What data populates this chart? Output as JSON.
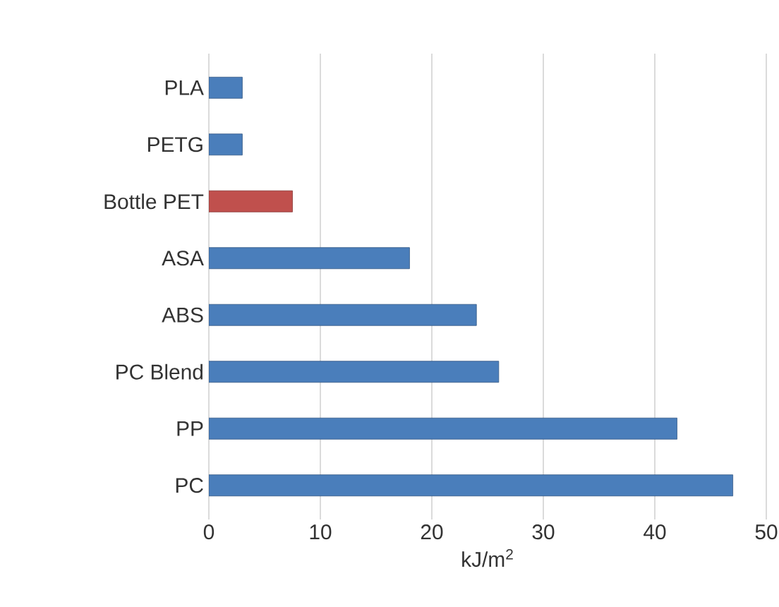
{
  "chart_data": {
    "type": "bar",
    "orientation": "horizontal",
    "categories": [
      "PLA",
      "PETG",
      "Bottle PET",
      "ASA",
      "ABS",
      "PC Blend",
      "PP",
      "PC"
    ],
    "values": [
      3,
      3,
      7.5,
      18,
      24,
      26,
      42,
      47
    ],
    "colors": [
      "#4a7ebb",
      "#4a7ebb",
      "#c0504d",
      "#4a7ebb",
      "#4a7ebb",
      "#4a7ebb",
      "#4a7ebb",
      "#4a7ebb"
    ],
    "xlim": [
      0,
      50
    ],
    "xticks": [
      0,
      10,
      20,
      30,
      40,
      50
    ],
    "xlabel": "kJ/m$^{2}$",
    "grid": "x"
  }
}
